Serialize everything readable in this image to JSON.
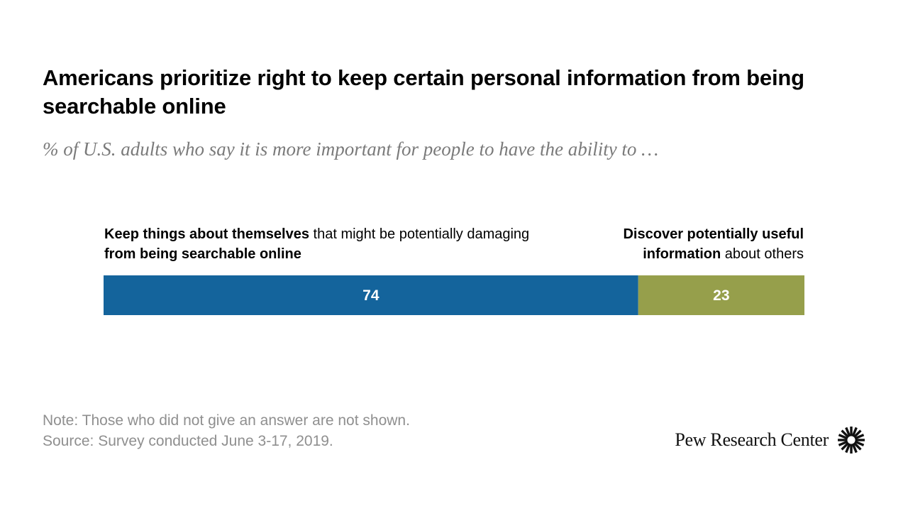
{
  "chart_data": {
    "type": "bar",
    "orientation": "horizontal-stacked",
    "title": "Americans prioritize right to keep certain personal information from being searchable online",
    "subtitle": "% of U.S. adults who say it is more important for people to have the ability to …",
    "series": [
      {
        "name": "Keep things about themselves that might be potentially damaging from being searchable online",
        "value": 74,
        "color": "#14649c"
      },
      {
        "name": "Discover potentially useful information about others",
        "value": 23,
        "color": "#969f4b"
      }
    ],
    "xlim": [
      0,
      100
    ],
    "grid": false,
    "legend": "labels above bar ends"
  },
  "left_label": {
    "part1_bold": "Keep things about themselves",
    "part2": " that might be potentially damaging ",
    "part3_bold": "from being searchable online"
  },
  "right_label": {
    "part1_bold": "Discover potentially useful information",
    "part2": " about others"
  },
  "note": "Note: Those who did not give an answer are not shown.",
  "source": "Source: Survey conducted June 3-17, 2019.",
  "logo": {
    "text": "Pew Research Center",
    "icon": "pew-sunburst-icon"
  }
}
